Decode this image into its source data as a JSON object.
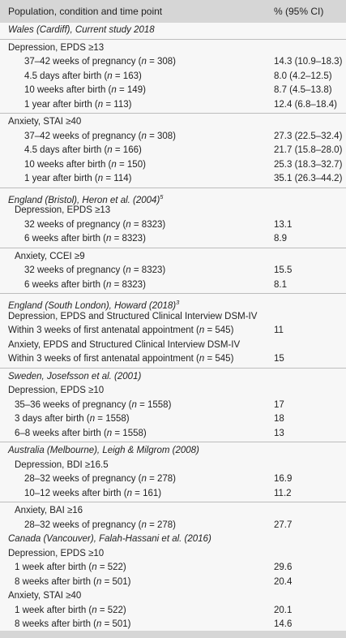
{
  "header": {
    "population": "Population, condition and time point",
    "value": "% (95% CI)"
  },
  "sections": [
    {
      "title": "Wales (Cardiff), Current study 2018",
      "groups": [
        {
          "condition": "Depression, EPDS ≥13",
          "rows": [
            {
              "label": "37–42 weeks of pregnancy (n = 308)",
              "value": "14.3 (10.9–18.3)"
            },
            {
              "label": "4.5 days after birth (n = 163)",
              "value": "8.0 (4.2–12.5)"
            },
            {
              "label": "10 weeks after birth (n = 149)",
              "value": "8.7 (4.5–13.8)"
            },
            {
              "label": "1 year after birth (n = 113)",
              "value": "12.4 (6.8–18.4)"
            }
          ]
        },
        {
          "condition": "Anxiety, STAI ≥40",
          "rows": [
            {
              "label": "37–42 weeks of pregnancy (n = 308)",
              "value": "27.3 (22.5–32.4)"
            },
            {
              "label": "4.5 days after birth (n = 166)",
              "value": "21.7 (15.8–28.0)"
            },
            {
              "label": "10 weeks after birth (n = 150)",
              "value": "25.3 (18.3–32.7)"
            },
            {
              "label": "1 year after birth (n = 114)",
              "value": "35.1 (26.3–44.2)"
            }
          ]
        }
      ]
    },
    {
      "title": "England (Bristol), Heron et al. (2004)",
      "ref": "5",
      "groups": [
        {
          "condition": "Depression, EPDS ≥13",
          "rows": [
            {
              "label": "32 weeks of pregnancy (n = 8323)",
              "value": 13.1
            },
            {
              "label": "6 weeks after birth (n = 8323)",
              "value": 8.9
            }
          ]
        },
        {
          "condition": "Anxiety, CCEI ≥9",
          "rows": [
            {
              "label": "32 weeks of pregnancy (n = 8323)",
              "value": 15.5
            },
            {
              "label": "6 weeks after birth (n = 8323)",
              "value": 8.1
            }
          ]
        }
      ]
    },
    {
      "title": "England (South London), Howard (2018)",
      "ref": "3",
      "groups": [
        {
          "condition": "Depression, EPDS and Structured Clinical Interview DSM-IV",
          "rows": [
            {
              "label": "Within 3 weeks of first antenatal appointment (n = 545)",
              "value": 11
            }
          ]
        },
        {
          "condition": "Anxiety, EPDS and Structured Clinical Interview DSM-IV",
          "rows": [
            {
              "label": "Within 3 weeks of first antenatal appointment (n = 545)",
              "value": 15
            }
          ]
        }
      ]
    },
    {
      "title": "Sweden, Josefsson et al. (2001)",
      "groups": [
        {
          "condition": "Depression, EPDS ≥10",
          "rows": [
            {
              "label": "35–36 weeks of pregnancy (n = 1558)",
              "value": 17
            },
            {
              "label": "3 days after birth (n = 1558)",
              "value": 18
            },
            {
              "label": "6–8 weeks after birth (n = 1558)",
              "value": 13
            }
          ]
        }
      ]
    },
    {
      "title": "Australia (Melbourne), Leigh & Milgrom (2008)",
      "groups": [
        {
          "condition": "Depression, BDI ≥16.5",
          "rows": [
            {
              "label": "28–32 weeks of pregnancy (n = 278)",
              "value": 16.9
            },
            {
              "label": "10–12 weeks after birth (n = 161)",
              "value": 11.2
            }
          ]
        },
        {
          "condition": "Anxiety, BAI ≥16",
          "rows": [
            {
              "label": "28–32 weeks of pregnancy (n = 278)",
              "value": 27.7
            }
          ]
        }
      ]
    },
    {
      "title": "Canada (Vancouver), Falah-Hassani et al. (2016)",
      "groups": [
        {
          "condition": "Depression, EPDS ≥10",
          "rows": [
            {
              "label": "1 week after birth (n = 522)",
              "value": 29.6
            },
            {
              "label": "8 weeks after birth (n = 501)",
              "value": 20.4
            }
          ]
        },
        {
          "condition": "Anxiety, STAI ≥40",
          "rows": [
            {
              "label": "1 week after birth (n = 522)",
              "value": 20.1
            },
            {
              "label": "8 weeks after birth (n = 501)",
              "value": 14.6
            }
          ]
        }
      ]
    }
  ]
}
